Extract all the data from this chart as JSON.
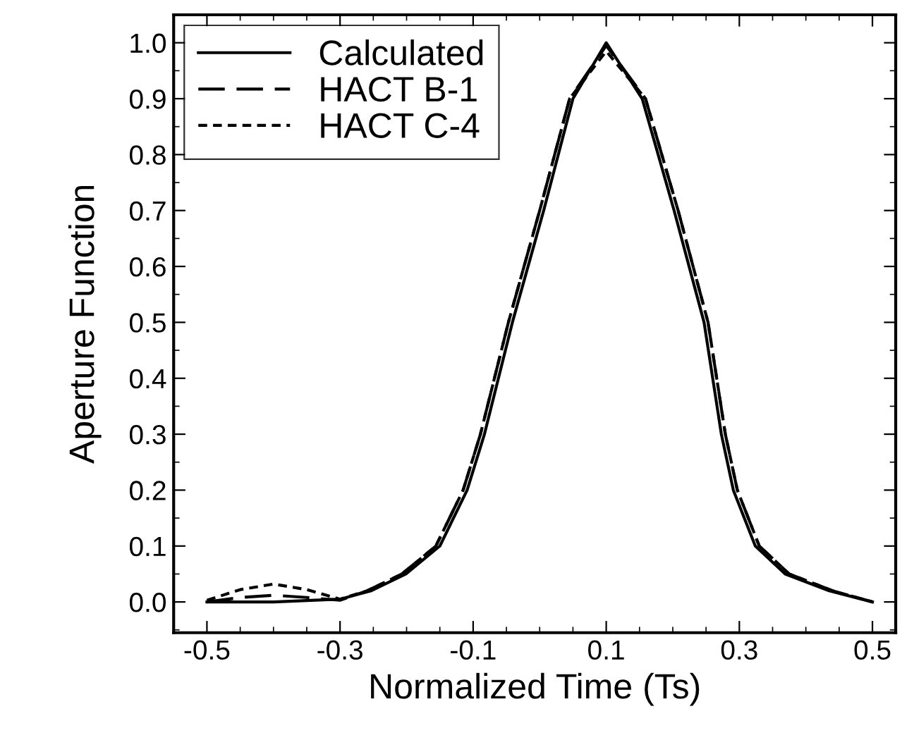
{
  "chart_data": {
    "type": "line",
    "xlabel": "Normalized Time (Ts)",
    "ylabel": "Aperture Function",
    "xlim": [
      -0.55,
      0.535
    ],
    "ylim": [
      -0.055,
      1.05
    ],
    "xticks": [
      -0.5,
      -0.3,
      -0.1,
      0.1,
      0.3,
      0.5
    ],
    "yticks": [
      {
        "value": 0,
        "label": "0.0"
      },
      0.1,
      0.2,
      0.3,
      0.4,
      0.5,
      0.6,
      0.7,
      0.8,
      0.9,
      {
        "value": 1,
        "label": "1.0"
      }
    ],
    "legend": "top left",
    "grid": false,
    "marker": "none",
    "series": [
      {
        "name": "Calculated",
        "color": "#000000",
        "line_style": "solid",
        "x": [
          -0.5,
          -0.4,
          -0.3,
          -0.253,
          -0.201,
          -0.15,
          -0.109,
          -0.083,
          -0.041,
          0.006,
          0.05,
          0.1,
          0.154,
          0.202,
          0.247,
          0.273,
          0.291,
          0.324,
          0.369,
          0.435,
          0.5
        ],
        "values": [
          0,
          0,
          0.005,
          0.02,
          0.05,
          0.1,
          0.2,
          0.3,
          0.5,
          0.7,
          0.9,
          1.0,
          0.9,
          0.7,
          0.5,
          0.3,
          0.2,
          0.1,
          0.05,
          0.02,
          0
        ]
      },
      {
        "name": "HACT B-1",
        "color": "#000000",
        "line_style": "dashed",
        "x": [
          -0.5,
          -0.45,
          -0.4,
          -0.35,
          -0.3,
          -0.259,
          -0.207,
          -0.156,
          -0.115,
          -0.089,
          -0.047,
          0.0,
          0.045,
          0.1,
          0.159,
          0.208,
          0.253,
          0.279,
          0.297,
          0.33,
          0.375,
          0.44,
          0.5
        ],
        "values": [
          0,
          0.008,
          0.012,
          0.008,
          0.003,
          0.02,
          0.05,
          0.1,
          0.2,
          0.3,
          0.5,
          0.7,
          0.9,
          0.995,
          0.9,
          0.7,
          0.5,
          0.3,
          0.2,
          0.1,
          0.05,
          0.02,
          0
        ]
      },
      {
        "name": "HACT C-4",
        "color": "#000000",
        "line_style": "dotted",
        "x": [
          -0.5,
          -0.45,
          -0.4,
          -0.35,
          -0.3,
          -0.259,
          -0.207,
          -0.156,
          -0.115,
          -0.089,
          -0.047,
          0.0,
          0.045,
          0.1,
          0.159,
          0.208,
          0.253,
          0.279,
          0.297,
          0.33,
          0.375,
          0.44,
          0.5
        ],
        "values": [
          0.003,
          0.022,
          0.032,
          0.022,
          0.005,
          0.02,
          0.05,
          0.1,
          0.2,
          0.3,
          0.5,
          0.7,
          0.9,
          0.985,
          0.9,
          0.7,
          0.5,
          0.3,
          0.2,
          0.1,
          0.05,
          0.02,
          0
        ]
      }
    ]
  }
}
